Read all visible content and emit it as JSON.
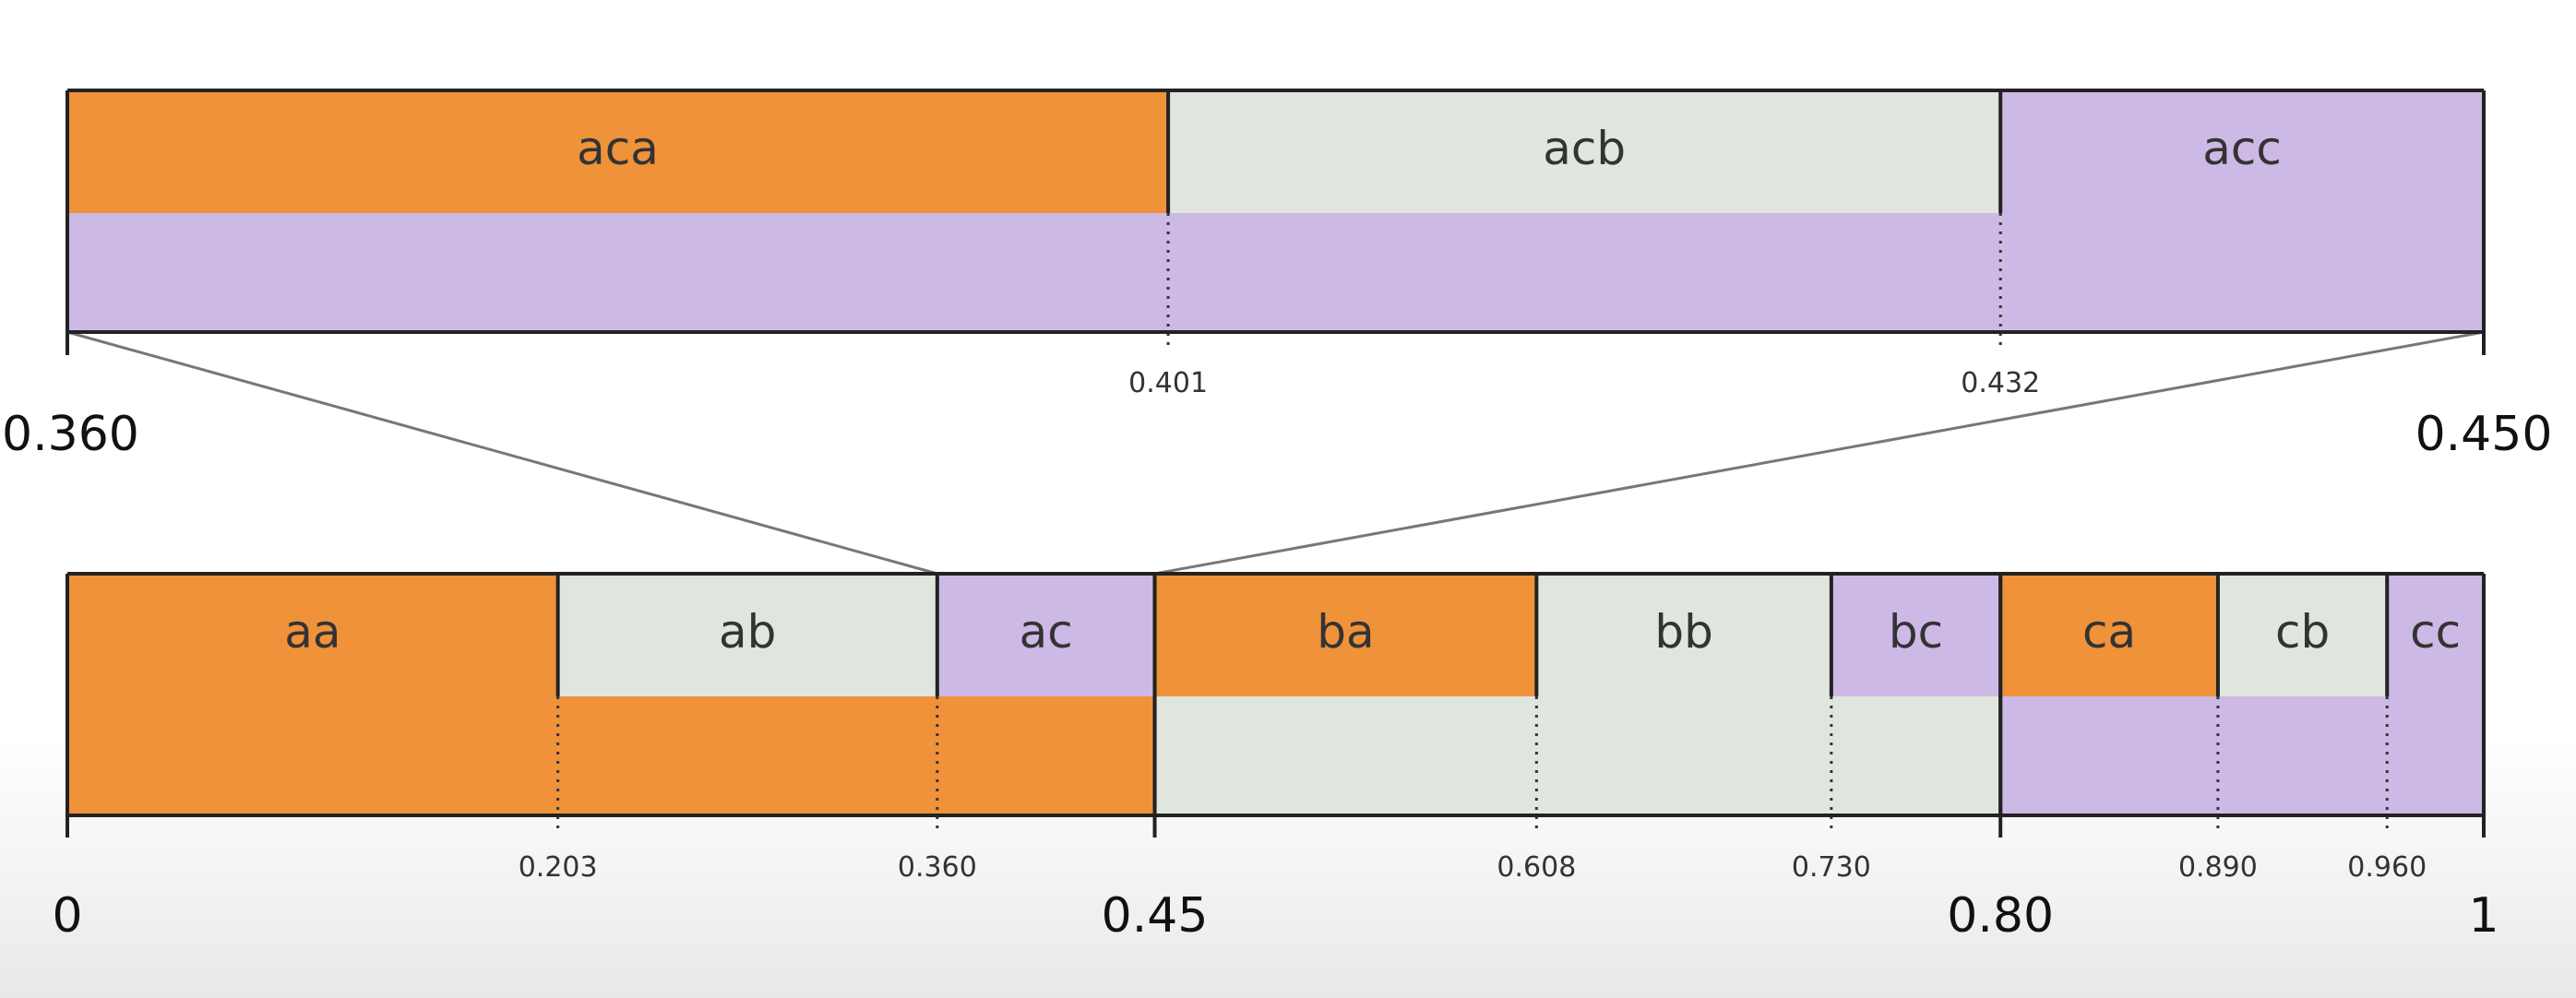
{
  "colors": {
    "a": "#F0923A",
    "b": "#E0E6DE",
    "c": "#CDB9E5"
  },
  "top": {
    "range": [
      0.36,
      0.45
    ],
    "segments": [
      {
        "label": "aca",
        "start": 0.36,
        "end": 0.401,
        "color": "a",
        "bottom_color": "c"
      },
      {
        "label": "acb",
        "start": 0.401,
        "end": 0.432,
        "color": "b",
        "bottom_color": "c"
      },
      {
        "label": "acc",
        "start": 0.432,
        "end": 0.45,
        "color": "c",
        "bottom_color": "c"
      }
    ],
    "major_ticks": [
      {
        "value": 0.36,
        "label": "0.360"
      },
      {
        "value": 0.45,
        "label": "0.450"
      }
    ],
    "minor_ticks": [
      {
        "value": 0.401,
        "label": "0.401"
      },
      {
        "value": 0.432,
        "label": "0.432"
      }
    ]
  },
  "bottom": {
    "range": [
      0,
      1
    ],
    "groups": [
      {
        "start": 0,
        "end": 0.45,
        "color": "a"
      },
      {
        "start": 0.45,
        "end": 0.8,
        "color": "b"
      },
      {
        "start": 0.8,
        "end": 1,
        "color": "c"
      }
    ],
    "segments": [
      {
        "label": "aa",
        "start": 0,
        "end": 0.203,
        "color": "a"
      },
      {
        "label": "ab",
        "start": 0.203,
        "end": 0.36,
        "color": "b"
      },
      {
        "label": "ac",
        "start": 0.36,
        "end": 0.45,
        "color": "c"
      },
      {
        "label": "ba",
        "start": 0.45,
        "end": 0.608,
        "color": "a"
      },
      {
        "label": "bb",
        "start": 0.608,
        "end": 0.73,
        "color": "b"
      },
      {
        "label": "bc",
        "start": 0.73,
        "end": 0.8,
        "color": "c"
      },
      {
        "label": "ca",
        "start": 0.8,
        "end": 0.89,
        "color": "a"
      },
      {
        "label": "cb",
        "start": 0.89,
        "end": 0.96,
        "color": "b"
      },
      {
        "label": "cc",
        "start": 0.96,
        "end": 1,
        "color": "c"
      }
    ],
    "major_ticks": [
      {
        "value": 0,
        "label": "0"
      },
      {
        "value": 0.45,
        "label": "0.45"
      },
      {
        "value": 0.8,
        "label": "0.80"
      },
      {
        "value": 1,
        "label": "1"
      }
    ],
    "minor_ticks": [
      {
        "value": 0.203,
        "label": "0.203"
      },
      {
        "value": 0.36,
        "label": "0.360"
      },
      {
        "value": 0.608,
        "label": "0.608"
      },
      {
        "value": 0.73,
        "label": "0.730"
      },
      {
        "value": 0.89,
        "label": "0.890"
      },
      {
        "value": 0.96,
        "label": "0.960"
      }
    ]
  },
  "zoom": {
    "from": [
      0.36,
      0.45
    ],
    "to": [
      0.36,
      0.45
    ]
  }
}
